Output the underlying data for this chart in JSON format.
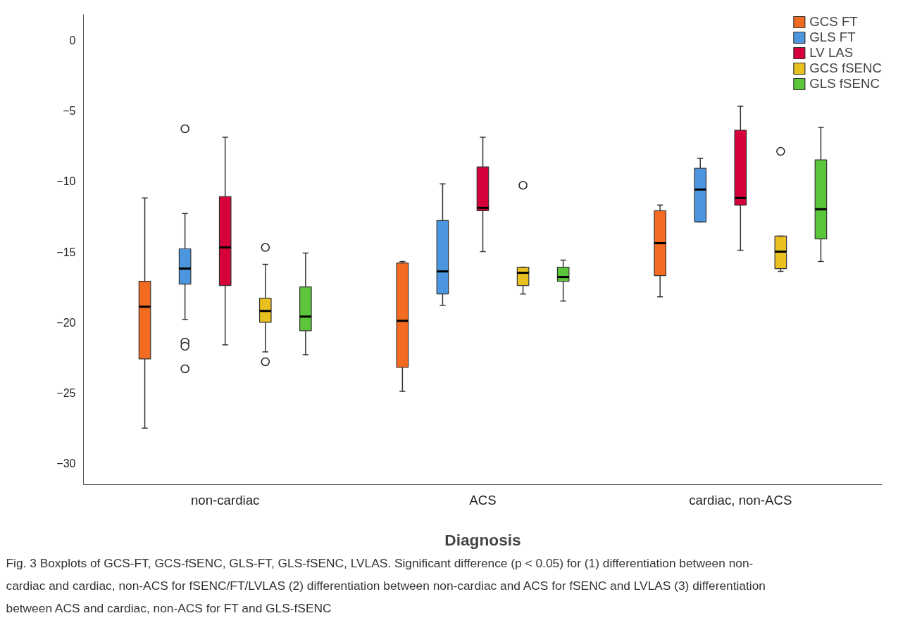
{
  "chart_data": {
    "type": "box",
    "xlabel": "Diagnosis",
    "categories": [
      "non-cardiac",
      "ACS",
      "cardiac, non-ACS"
    ],
    "ylim": [
      -31.5,
      1.8
    ],
    "yticks": [
      0,
      -5,
      -10,
      -15,
      -20,
      -25,
      -30
    ],
    "grid": false,
    "legend": "top right",
    "series": [
      {
        "name": "GCS FT",
        "color": "#f26b21",
        "boxes": [
          {
            "low": -27.5,
            "q1": -22.6,
            "median": -18.9,
            "q3": -17.1,
            "high": -11.2
          },
          {
            "low": -24.9,
            "q1": -23.2,
            "median": -19.9,
            "q3": -15.8,
            "high": -15.7
          },
          {
            "low": -18.2,
            "q1": -16.7,
            "median": -14.4,
            "q3": -12.1,
            "high": -11.7
          }
        ]
      },
      {
        "name": "GLS FT",
        "color": "#4c96e0",
        "boxes": [
          {
            "low": -19.8,
            "q1": -17.3,
            "median": -16.2,
            "q3": -14.8,
            "high": -12.3,
            "outliers": [
              -6.3,
              -21.4,
              -21.7,
              -23.3
            ]
          },
          {
            "low": -18.8,
            "q1": -18.0,
            "median": -16.4,
            "q3": -12.8,
            "high": -10.2
          },
          {
            "low": -12.9,
            "q1": -12.9,
            "median": -10.6,
            "q3": -9.1,
            "high": -8.4
          }
        ]
      },
      {
        "name": "LV LAS",
        "color": "#d6003a",
        "boxes": [
          {
            "low": -21.6,
            "q1": -17.4,
            "median": -14.7,
            "q3": -11.1,
            "high": -6.9
          },
          {
            "low": -15.0,
            "q1": -12.1,
            "median": -11.9,
            "q3": -9.0,
            "high": -6.9
          },
          {
            "low": -14.9,
            "q1": -11.7,
            "median": -11.2,
            "q3": -6.4,
            "high": -4.7
          }
        ]
      },
      {
        "name": "GCS fSENC",
        "color": "#e8c020",
        "boxes": [
          {
            "low": -22.1,
            "q1": -20.0,
            "median": -19.2,
            "q3": -18.3,
            "high": -15.9,
            "outliers": [
              -14.7,
              -22.8
            ]
          },
          {
            "low": -18.0,
            "q1": -17.4,
            "median": -16.5,
            "q3": -16.1,
            "high": -16.1,
            "outliers": [
              -10.3
            ]
          },
          {
            "low": -16.4,
            "q1": -16.2,
            "median": -15.0,
            "q3": -13.9,
            "high": -13.9,
            "outliers": [
              -7.9
            ]
          }
        ]
      },
      {
        "name": "GLS fSENC",
        "color": "#5cc63a",
        "boxes": [
          {
            "low": -22.3,
            "q1": -20.6,
            "median": -19.6,
            "q3": -17.5,
            "high": -15.1
          },
          {
            "low": -18.5,
            "q1": -17.1,
            "median": -16.8,
            "q3": -16.1,
            "high": -15.6
          },
          {
            "low": -15.7,
            "q1": -14.1,
            "median": -12.0,
            "q3": -8.5,
            "high": -6.2
          }
        ]
      }
    ],
    "annotations": [
      "Fig. 3  Boxplots of GCS-FT, GCS-fSENC, GLS-FT, GLS-fSENC, LVLAS. Significant difference (p < 0.05) for (1) differentiation between non-cardiac and cardiac, non-ACS for fSENC/FT/LVLAS (2) differentiation between non-cardiac and ACS for fSENC and LVLAS (3) differentiation between ACS and cardiac, non-ACS for FT and GLS-fSENC"
    ]
  }
}
